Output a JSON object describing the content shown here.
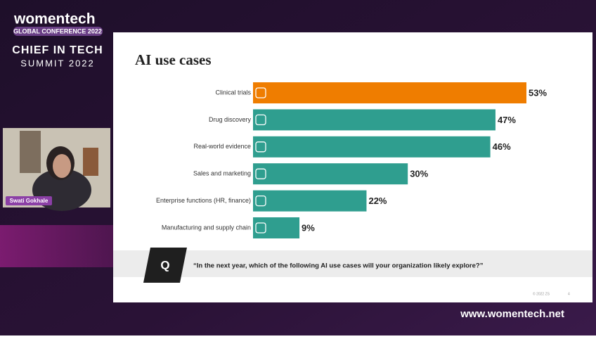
{
  "branding": {
    "brand": "womentech",
    "conference": "GLOBAL CONFERENCE 2022",
    "event": "CHIEF IN TECH",
    "event_sub": "SUMMIT 2022",
    "website": "www.womentech.net"
  },
  "speaker": {
    "name": "Swati Gokhale"
  },
  "slide": {
    "question_badge": "Q",
    "question": "“In the next year, which of the following AI use cases will your organization likely explore?”",
    "copyright": "© 2022 ZS",
    "page_number": "4"
  },
  "chart_data": {
    "type": "bar",
    "orientation": "horizontal",
    "title": "AI use cases",
    "categories": [
      "Clinical trials",
      "Drug discovery",
      "Real-world evidence",
      "Sales and marketing",
      "Enterprise functions (HR, finance)",
      "Manufacturing and supply chain"
    ],
    "values": [
      53,
      47,
      46,
      30,
      22,
      9
    ],
    "value_labels": [
      "53%",
      "47%",
      "46%",
      "30%",
      "22%",
      "9%"
    ],
    "colors": [
      "#ef7d00",
      "#2f9e8f",
      "#2f9e8f",
      "#2f9e8f",
      "#2f9e8f",
      "#2f9e8f"
    ]
  }
}
